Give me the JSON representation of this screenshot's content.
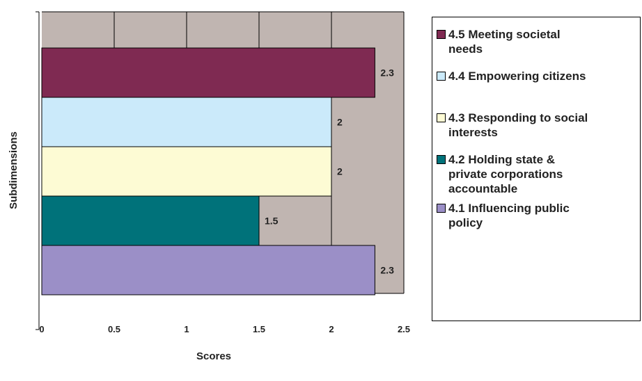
{
  "chart_data": {
    "type": "bar",
    "orientation": "horizontal",
    "xlabel": "Scores",
    "ylabel": "Subdimensions",
    "xlim": [
      0,
      2.5
    ],
    "xticks": [
      "0",
      "0.5",
      "1",
      "1.5",
      "2",
      "2.5"
    ],
    "grid": true,
    "legend_position": "right",
    "plot_background": "#c0b5b1",
    "series": [
      {
        "name": "4.5 Meeting societal\nneeds",
        "value": 2.3,
        "label": "2.3",
        "color": "#7f2a52"
      },
      {
        "name": "4.4 Empowering citizens",
        "value": 2,
        "label": "2",
        "color": "#cbeafa"
      },
      {
        "name": "4.3 Responding to social\ninterests",
        "value": 2,
        "label": "2",
        "color": "#fdfbd4"
      },
      {
        "name": "4.2 Holding state &\nprivate corporations\naccountable",
        "value": 1.5,
        "label": "1.5",
        "color": "#00727a"
      },
      {
        "name": "4.1 Influencing public\npolicy",
        "value": 2.3,
        "label": "2.3",
        "color": "#9b8fc7"
      }
    ]
  }
}
